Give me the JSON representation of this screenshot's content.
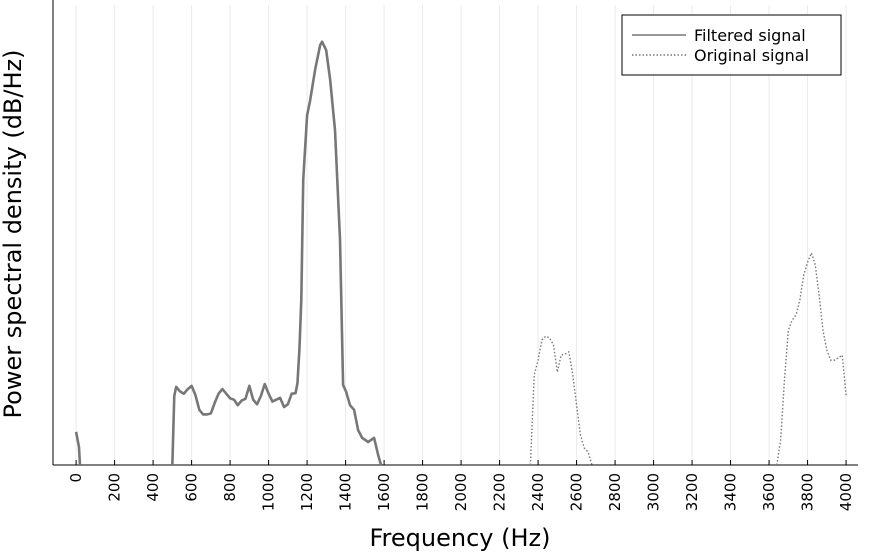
{
  "chart_data": {
    "type": "line",
    "xlabel": "Frequency (Hz)",
    "ylabel": "Power spectral density (dB/Hz)",
    "xlim": [
      -120,
      4062
    ],
    "ylim": [
      0,
      100
    ],
    "xticks": [
      0,
      200,
      400,
      600,
      800,
      1000,
      1200,
      1400,
      1600,
      1800,
      2000,
      2200,
      2400,
      2600,
      2800,
      3000,
      3200,
      3400,
      3600,
      3800,
      4000
    ],
    "grid": true,
    "legend": "upper right",
    "series": [
      {
        "name": "Filtered signal",
        "color": "#777777",
        "style": "solid",
        "x": [
          0,
          15,
          20,
          260,
          500,
          510,
          520,
          540,
          560,
          580,
          600,
          620,
          640,
          660,
          680,
          700,
          720,
          740,
          760,
          780,
          800,
          820,
          840,
          860,
          880,
          900,
          920,
          940,
          960,
          980,
          1000,
          1020,
          1040,
          1060,
          1080,
          1100,
          1120,
          1140,
          1150,
          1160,
          1170,
          1180,
          1200,
          1216,
          1242,
          1268,
          1278,
          1299,
          1320,
          1345,
          1371,
          1387,
          1403,
          1423,
          1444,
          1465,
          1486,
          1517,
          1548,
          1569,
          1584
        ],
        "values": [
          7.2,
          3.9,
          0,
          null,
          0,
          15,
          17,
          16,
          15.5,
          16.5,
          17.2,
          15.2,
          12,
          11,
          11,
          11.2,
          13.5,
          15.5,
          16.5,
          15.5,
          14.5,
          14.2,
          13,
          14,
          14.4,
          17.2,
          14.2,
          13.2,
          15,
          17.6,
          15.5,
          13.8,
          14.2,
          14.6,
          12.6,
          13.2,
          15.5,
          15.6,
          17.8,
          25,
          36,
          62,
          76,
          79.3,
          86,
          91.3,
          92,
          90.2,
          83.7,
          72.8,
          49,
          17.4,
          15.9,
          13,
          12,
          7.6,
          5.9,
          5,
          5.9,
          2.2,
          0
        ]
      },
      {
        "name": "Original signal",
        "color": "#777777",
        "style": "dotted",
        "x": [
          2360,
          2370,
          2380,
          2400,
          2420,
          2440,
          2460,
          2480,
          2500,
          2520,
          2540,
          2560,
          2580,
          2600,
          2620,
          2640,
          2660,
          2680,
          3000,
          3640,
          3660,
          3680,
          3700,
          3720,
          3740,
          3760,
          3780,
          3800,
          3820,
          3840,
          3860,
          3880,
          3900,
          3920,
          3940,
          3960,
          3980,
          4000
        ],
        "values": [
          0,
          9.8,
          19.6,
          22.8,
          27.2,
          28,
          27.6,
          26.1,
          20.2,
          23.9,
          24.1,
          24.6,
          19.6,
          13,
          6.5,
          3.7,
          2.8,
          0,
          null,
          0,
          5.4,
          18.5,
          29.3,
          31.5,
          32.6,
          35.9,
          41.3,
          44.1,
          46.1,
          43.5,
          37,
          29.3,
          25,
          22.8,
          22.8,
          23.3,
          23.9,
          15.2
        ]
      }
    ]
  }
}
